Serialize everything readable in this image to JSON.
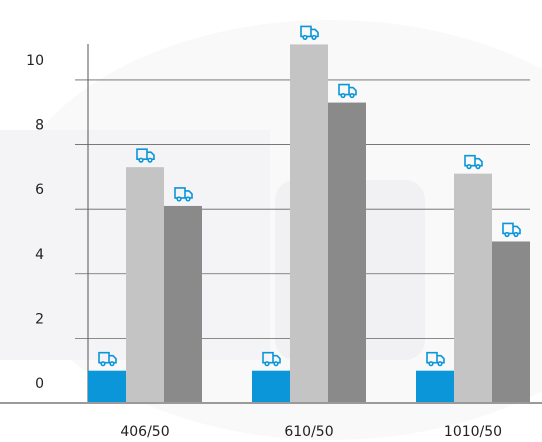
{
  "chart_data": {
    "type": "bar",
    "categories": [
      "406/50",
      "610/50",
      "1010/50"
    ],
    "series": [
      {
        "color": "#0a96d8",
        "values": [
          1,
          1,
          1
        ]
      },
      {
        "color": "#c4c4c4",
        "values": [
          7.3,
          11.1,
          7.1
        ]
      },
      {
        "color": "#8a8a8a",
        "values": [
          6.1,
          9.3,
          5.0
        ]
      }
    ],
    "ylim": [
      0,
      11.5
    ],
    "yticks": [
      0,
      2,
      4,
      6,
      8,
      10
    ],
    "grid": true
  }
}
